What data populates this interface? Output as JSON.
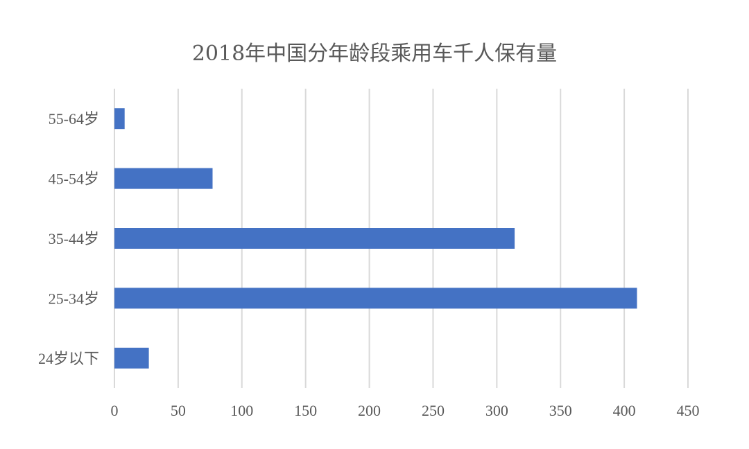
{
  "chart_data": {
    "type": "bar",
    "orientation": "horizontal",
    "title": "2018年中国分年龄段乘用车千人保有量",
    "xlabel": "",
    "ylabel": "",
    "categories": [
      "55-64岁",
      "45-54岁",
      "35-44岁",
      "25-34岁",
      "24岁以下"
    ],
    "values": [
      8,
      77,
      314,
      410,
      27
    ],
    "xlim": [
      0,
      450
    ],
    "xticks": [
      0,
      50,
      100,
      150,
      200,
      250,
      300,
      350,
      400,
      450
    ],
    "grid": "vertical",
    "legend": "none",
    "bar_color": "#4472c4"
  }
}
